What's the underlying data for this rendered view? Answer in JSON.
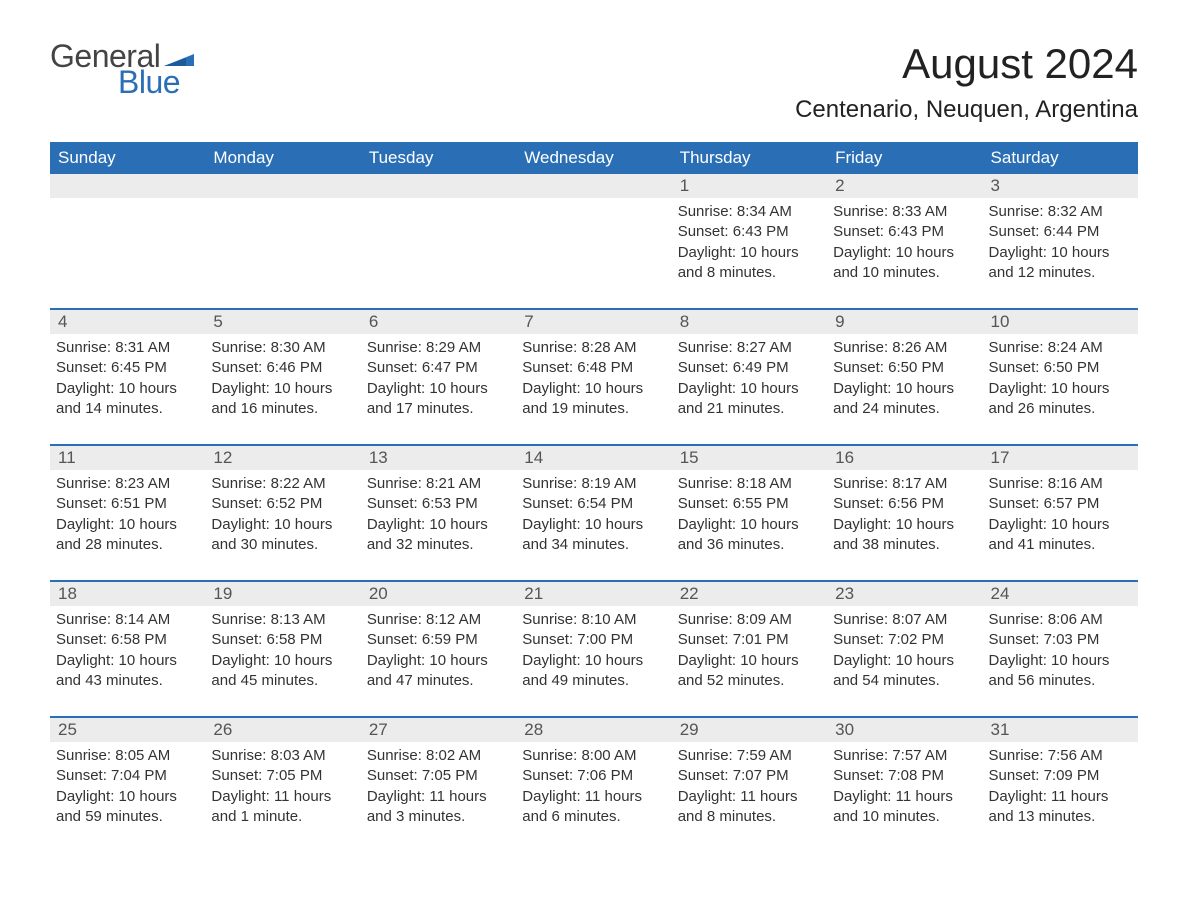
{
  "logo": {
    "word1": "General",
    "word2": "Blue",
    "flag_color": "#2a6fb5"
  },
  "header": {
    "month_title": "August 2024",
    "location": "Centenario, Neuquen, Argentina"
  },
  "colors": {
    "header_bg": "#2a6fb5",
    "header_text": "#ffffff",
    "daynum_bg": "#ececec",
    "text": "#333333",
    "page_bg": "#ffffff",
    "week_border": "#2a6fb5"
  },
  "typography": {
    "title_fontsize_pt": 32,
    "location_fontsize_pt": 18,
    "dayhead_fontsize_pt": 13,
    "body_fontsize_pt": 11
  },
  "calendar": {
    "type": "table",
    "day_headers": [
      "Sunday",
      "Monday",
      "Tuesday",
      "Wednesday",
      "Thursday",
      "Friday",
      "Saturday"
    ],
    "weeks": [
      [
        null,
        null,
        null,
        null,
        {
          "day": "1",
          "sunrise": "Sunrise: 8:34 AM",
          "sunset": "Sunset: 6:43 PM",
          "daylight": "Daylight: 10 hours and 8 minutes."
        },
        {
          "day": "2",
          "sunrise": "Sunrise: 8:33 AM",
          "sunset": "Sunset: 6:43 PM",
          "daylight": "Daylight: 10 hours and 10 minutes."
        },
        {
          "day": "3",
          "sunrise": "Sunrise: 8:32 AM",
          "sunset": "Sunset: 6:44 PM",
          "daylight": "Daylight: 10 hours and 12 minutes."
        }
      ],
      [
        {
          "day": "4",
          "sunrise": "Sunrise: 8:31 AM",
          "sunset": "Sunset: 6:45 PM",
          "daylight": "Daylight: 10 hours and 14 minutes."
        },
        {
          "day": "5",
          "sunrise": "Sunrise: 8:30 AM",
          "sunset": "Sunset: 6:46 PM",
          "daylight": "Daylight: 10 hours and 16 minutes."
        },
        {
          "day": "6",
          "sunrise": "Sunrise: 8:29 AM",
          "sunset": "Sunset: 6:47 PM",
          "daylight": "Daylight: 10 hours and 17 minutes."
        },
        {
          "day": "7",
          "sunrise": "Sunrise: 8:28 AM",
          "sunset": "Sunset: 6:48 PM",
          "daylight": "Daylight: 10 hours and 19 minutes."
        },
        {
          "day": "8",
          "sunrise": "Sunrise: 8:27 AM",
          "sunset": "Sunset: 6:49 PM",
          "daylight": "Daylight: 10 hours and 21 minutes."
        },
        {
          "day": "9",
          "sunrise": "Sunrise: 8:26 AM",
          "sunset": "Sunset: 6:50 PM",
          "daylight": "Daylight: 10 hours and 24 minutes."
        },
        {
          "day": "10",
          "sunrise": "Sunrise: 8:24 AM",
          "sunset": "Sunset: 6:50 PM",
          "daylight": "Daylight: 10 hours and 26 minutes."
        }
      ],
      [
        {
          "day": "11",
          "sunrise": "Sunrise: 8:23 AM",
          "sunset": "Sunset: 6:51 PM",
          "daylight": "Daylight: 10 hours and 28 minutes."
        },
        {
          "day": "12",
          "sunrise": "Sunrise: 8:22 AM",
          "sunset": "Sunset: 6:52 PM",
          "daylight": "Daylight: 10 hours and 30 minutes."
        },
        {
          "day": "13",
          "sunrise": "Sunrise: 8:21 AM",
          "sunset": "Sunset: 6:53 PM",
          "daylight": "Daylight: 10 hours and 32 minutes."
        },
        {
          "day": "14",
          "sunrise": "Sunrise: 8:19 AM",
          "sunset": "Sunset: 6:54 PM",
          "daylight": "Daylight: 10 hours and 34 minutes."
        },
        {
          "day": "15",
          "sunrise": "Sunrise: 8:18 AM",
          "sunset": "Sunset: 6:55 PM",
          "daylight": "Daylight: 10 hours and 36 minutes."
        },
        {
          "day": "16",
          "sunrise": "Sunrise: 8:17 AM",
          "sunset": "Sunset: 6:56 PM",
          "daylight": "Daylight: 10 hours and 38 minutes."
        },
        {
          "day": "17",
          "sunrise": "Sunrise: 8:16 AM",
          "sunset": "Sunset: 6:57 PM",
          "daylight": "Daylight: 10 hours and 41 minutes."
        }
      ],
      [
        {
          "day": "18",
          "sunrise": "Sunrise: 8:14 AM",
          "sunset": "Sunset: 6:58 PM",
          "daylight": "Daylight: 10 hours and 43 minutes."
        },
        {
          "day": "19",
          "sunrise": "Sunrise: 8:13 AM",
          "sunset": "Sunset: 6:58 PM",
          "daylight": "Daylight: 10 hours and 45 minutes."
        },
        {
          "day": "20",
          "sunrise": "Sunrise: 8:12 AM",
          "sunset": "Sunset: 6:59 PM",
          "daylight": "Daylight: 10 hours and 47 minutes."
        },
        {
          "day": "21",
          "sunrise": "Sunrise: 8:10 AM",
          "sunset": "Sunset: 7:00 PM",
          "daylight": "Daylight: 10 hours and 49 minutes."
        },
        {
          "day": "22",
          "sunrise": "Sunrise: 8:09 AM",
          "sunset": "Sunset: 7:01 PM",
          "daylight": "Daylight: 10 hours and 52 minutes."
        },
        {
          "day": "23",
          "sunrise": "Sunrise: 8:07 AM",
          "sunset": "Sunset: 7:02 PM",
          "daylight": "Daylight: 10 hours and 54 minutes."
        },
        {
          "day": "24",
          "sunrise": "Sunrise: 8:06 AM",
          "sunset": "Sunset: 7:03 PM",
          "daylight": "Daylight: 10 hours and 56 minutes."
        }
      ],
      [
        {
          "day": "25",
          "sunrise": "Sunrise: 8:05 AM",
          "sunset": "Sunset: 7:04 PM",
          "daylight": "Daylight: 10 hours and 59 minutes."
        },
        {
          "day": "26",
          "sunrise": "Sunrise: 8:03 AM",
          "sunset": "Sunset: 7:05 PM",
          "daylight": "Daylight: 11 hours and 1 minute."
        },
        {
          "day": "27",
          "sunrise": "Sunrise: 8:02 AM",
          "sunset": "Sunset: 7:05 PM",
          "daylight": "Daylight: 11 hours and 3 minutes."
        },
        {
          "day": "28",
          "sunrise": "Sunrise: 8:00 AM",
          "sunset": "Sunset: 7:06 PM",
          "daylight": "Daylight: 11 hours and 6 minutes."
        },
        {
          "day": "29",
          "sunrise": "Sunrise: 7:59 AM",
          "sunset": "Sunset: 7:07 PM",
          "daylight": "Daylight: 11 hours and 8 minutes."
        },
        {
          "day": "30",
          "sunrise": "Sunrise: 7:57 AM",
          "sunset": "Sunset: 7:08 PM",
          "daylight": "Daylight: 11 hours and 10 minutes."
        },
        {
          "day": "31",
          "sunrise": "Sunrise: 7:56 AM",
          "sunset": "Sunset: 7:09 PM",
          "daylight": "Daylight: 11 hours and 13 minutes."
        }
      ]
    ]
  }
}
